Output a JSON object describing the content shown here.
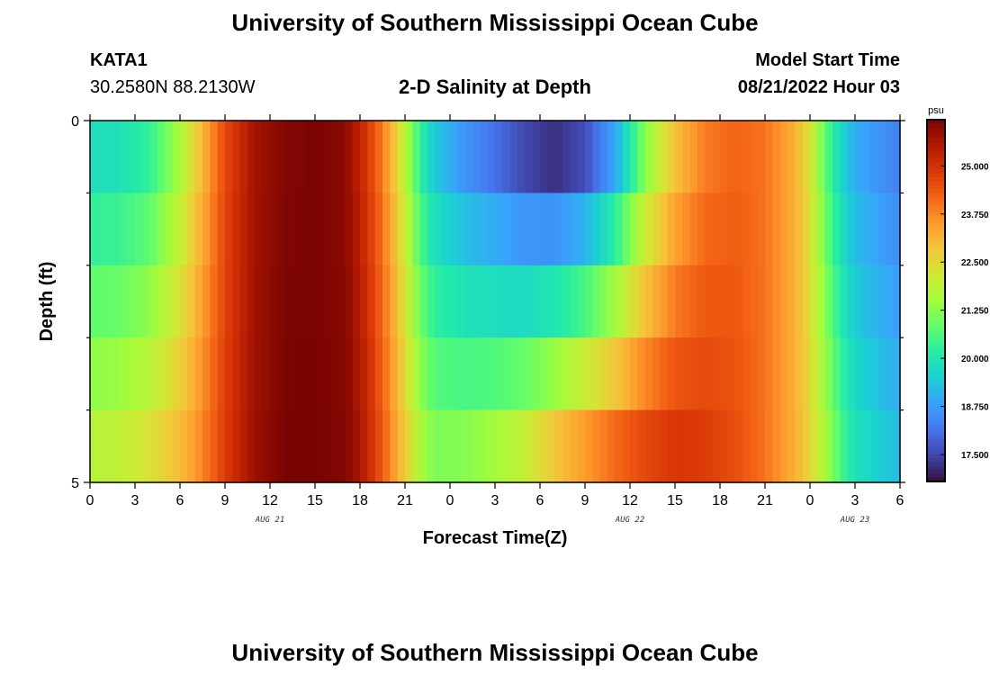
{
  "header": {
    "title": "University of Southern Mississippi Ocean Cube",
    "station": "KATA1",
    "coords": "30.2580N  88.2130W",
    "plot_title": "2-D Salinity at Depth",
    "model_start_label": "Model Start Time",
    "model_start_value": "08/21/2022 Hour 03"
  },
  "footer": {
    "title": "University of Southern Mississippi Ocean Cube"
  },
  "chart_data": {
    "type": "heatmap",
    "title": "2-D Salinity at Depth",
    "xlabel": "Forecast Time(Z)",
    "ylabel": "Depth (ft)",
    "y_range": [
      0,
      5
    ],
    "y_ticks": [
      "0",
      "5"
    ],
    "x_range_hours": [
      0,
      54
    ],
    "x_ticks": [
      "0",
      "3",
      "6",
      "9",
      "12",
      "15",
      "18",
      "21",
      "0",
      "3",
      "6",
      "9",
      "12",
      "15",
      "18",
      "21",
      "0",
      "3",
      "6"
    ],
    "date_labels": [
      {
        "label": "AUG 21",
        "hour": 12
      },
      {
        "label": "AUG 22",
        "hour": 36
      },
      {
        "label": "AUG 23",
        "hour": 51
      }
    ],
    "colorbar": {
      "unit": "psu",
      "ticks": [
        "25.000",
        "23.750",
        "22.500",
        "21.250",
        "20.000",
        "18.750",
        "17.500"
      ],
      "range": [
        16.8,
        26.2
      ],
      "colors": [
        "#30123b",
        "#4145ab",
        "#4675ed",
        "#39a2fc",
        "#1bcfd4",
        "#24eca6",
        "#61fc6c",
        "#a4fc3b",
        "#d1e834",
        "#f3c63a",
        "#fe9b2d",
        "#f36315",
        "#d93806",
        "#b11901",
        "#7a0402"
      ]
    },
    "depth_layers": [
      0,
      1,
      2,
      3,
      4,
      5
    ],
    "time_profiles": {
      "hours": [
        0,
        2,
        4,
        6,
        7,
        8,
        9,
        11,
        13,
        15,
        17,
        18,
        19,
        20,
        21,
        22,
        23,
        25,
        27,
        29,
        31,
        33,
        35,
        37,
        39,
        41,
        43,
        45,
        47,
        48,
        49,
        50,
        51,
        53,
        54
      ],
      "surface": [
        19.8,
        19.9,
        20.3,
        21.6,
        22.6,
        23.6,
        24.6,
        25.7,
        26.1,
        26.2,
        26.0,
        25.3,
        24.4,
        23.3,
        21.8,
        20.3,
        19.4,
        18.6,
        18.1,
        17.5,
        17.2,
        17.6,
        18.9,
        21.2,
        22.9,
        23.9,
        24.2,
        24.0,
        23.2,
        22.3,
        20.8,
        19.7,
        19.0,
        18.5,
        18.3
      ],
      "bottom": [
        21.8,
        21.9,
        22.3,
        23.0,
        23.5,
        24.1,
        24.8,
        25.8,
        26.2,
        26.2,
        26.1,
        25.6,
        24.8,
        23.8,
        22.7,
        21.6,
        21.1,
        21.2,
        21.5,
        22.0,
        22.8,
        23.5,
        24.1,
        24.6,
        24.9,
        24.8,
        24.5,
        24.0,
        23.2,
        22.5,
        21.6,
        20.6,
        19.9,
        19.4,
        19.2
      ]
    }
  }
}
